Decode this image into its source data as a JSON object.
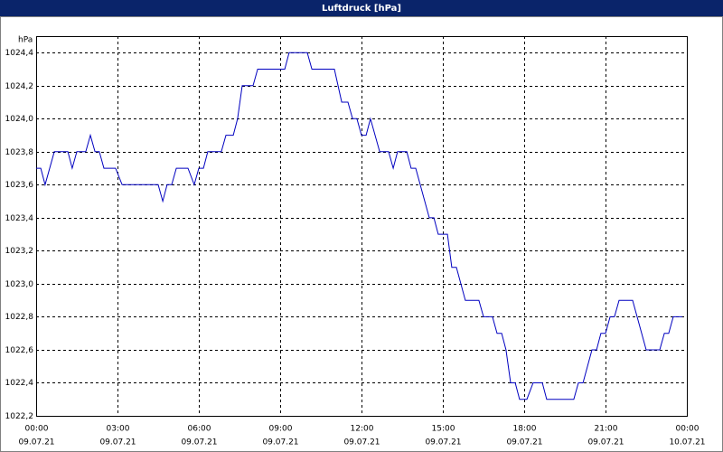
{
  "chart_data": {
    "type": "line",
    "title": "Luftdruck [hPa]",
    "y_unit": "hPa",
    "xlim": [
      0,
      24
    ],
    "ylim": [
      1022.2,
      1024.5
    ],
    "xticks": [
      {
        "value": 0,
        "label": "00:00"
      },
      {
        "value": 3,
        "label": "03:00"
      },
      {
        "value": 6,
        "label": "06:00"
      },
      {
        "value": 9,
        "label": "09:00"
      },
      {
        "value": 12,
        "label": "12:00"
      },
      {
        "value": 15,
        "label": "15:00"
      },
      {
        "value": 18,
        "label": "18:00"
      },
      {
        "value": 21,
        "label": "21:00"
      },
      {
        "value": 24,
        "label": "00:00"
      }
    ],
    "xtick_dates": [
      "09.07.21",
      "09.07.21",
      "09.07.21",
      "09.07.21",
      "09.07.21",
      "09.07.21",
      "09.07.21",
      "09.07.21",
      "10.07.21"
    ],
    "yticks": [
      {
        "value": 1022.2,
        "label": "1022,2"
      },
      {
        "value": 1022.4,
        "label": "1022,4"
      },
      {
        "value": 1022.6,
        "label": "1022,6"
      },
      {
        "value": 1022.8,
        "label": "1022,8"
      },
      {
        "value": 1023.0,
        "label": "1023,0"
      },
      {
        "value": 1023.2,
        "label": "1023,2"
      },
      {
        "value": 1023.4,
        "label": "1023,4"
      },
      {
        "value": 1023.6,
        "label": "1023,6"
      },
      {
        "value": 1023.8,
        "label": "1023,8"
      },
      {
        "value": 1024.0,
        "label": "1024,0"
      },
      {
        "value": 1024.2,
        "label": "1024,2"
      },
      {
        "value": 1024.4,
        "label": "1024,4"
      }
    ],
    "grid": true,
    "color": "#0000c0",
    "x": [
      0,
      0.17,
      0.33,
      0.67,
      1.17,
      1.33,
      1.5,
      1.83,
      2,
      2.17,
      2.33,
      2.5,
      2.93,
      3.17,
      4.5,
      4.67,
      4.83,
      5,
      5.17,
      5.6,
      5.83,
      6,
      6.17,
      6.33,
      6.83,
      7,
      7.27,
      7.43,
      7.6,
      8,
      8.17,
      9.17,
      9.33,
      10,
      10.17,
      11,
      11.27,
      11.5,
      11.67,
      11.83,
      12,
      12.17,
      12.33,
      12.67,
      13,
      13.17,
      13.33,
      13.67,
      13.83,
      14,
      14.5,
      14.67,
      14.83,
      15.17,
      15.33,
      15.5,
      15.83,
      16.33,
      16.5,
      16.83,
      17,
      17.17,
      17.33,
      17.5,
      17.67,
      17.83,
      18.1,
      18.33,
      18.67,
      18.83,
      19.83,
      20,
      20.17,
      20.5,
      20.67,
      20.83,
      21,
      21.17,
      21.33,
      21.5,
      22,
      22.5,
      23,
      23.17,
      23.33,
      23.5,
      23.83
    ],
    "values": [
      1023.7,
      1023.7,
      1023.6,
      1023.8,
      1023.8,
      1023.7,
      1023.8,
      1023.8,
      1023.9,
      1023.8,
      1023.8,
      1023.7,
      1023.7,
      1023.6,
      1023.6,
      1023.5,
      1023.6,
      1023.6,
      1023.7,
      1023.7,
      1023.6,
      1023.7,
      1023.7,
      1023.8,
      1023.8,
      1023.9,
      1023.9,
      1024.0,
      1024.2,
      1024.2,
      1024.3,
      1024.3,
      1024.4,
      1024.4,
      1024.3,
      1024.3,
      1024.1,
      1024.1,
      1024.0,
      1024.0,
      1023.9,
      1023.9,
      1024.0,
      1023.8,
      1023.8,
      1023.7,
      1023.8,
      1023.8,
      1023.7,
      1023.7,
      1023.4,
      1023.4,
      1023.3,
      1023.3,
      1023.1,
      1023.1,
      1022.9,
      1022.9,
      1022.8,
      1022.8,
      1022.7,
      1022.7,
      1022.6,
      1022.4,
      1022.4,
      1022.3,
      1022.3,
      1022.4,
      1022.4,
      1022.3,
      1022.3,
      1022.4,
      1022.4,
      1022.6,
      1022.6,
      1022.7,
      1022.7,
      1022.8,
      1022.8,
      1022.9,
      1022.9,
      1022.6,
      1022.6,
      1022.7,
      1022.7,
      1022.8,
      1022.8
    ]
  }
}
